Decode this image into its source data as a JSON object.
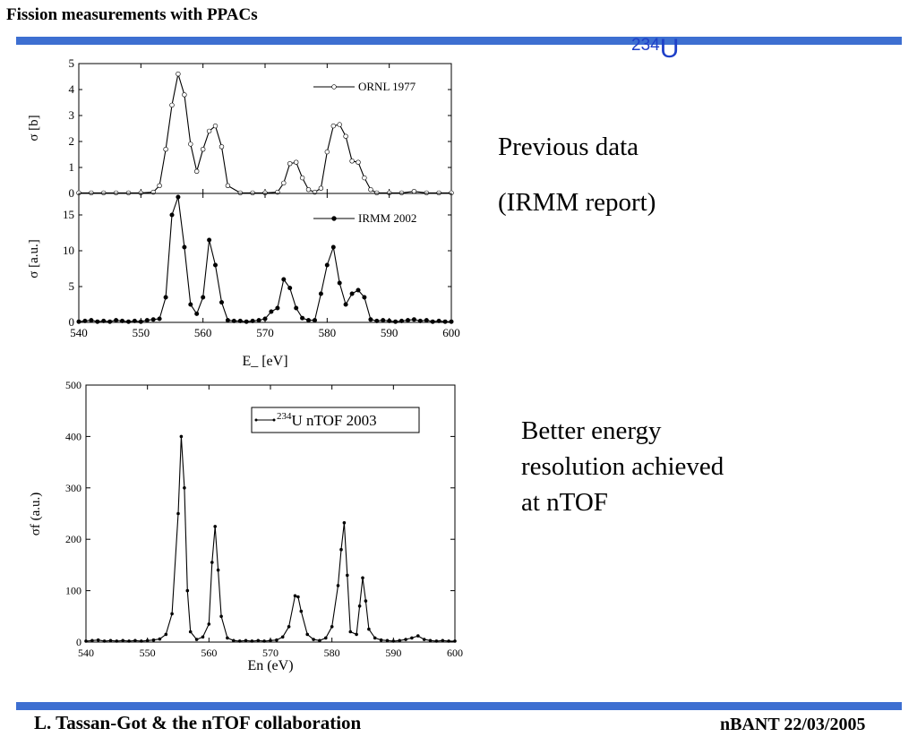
{
  "slide": {
    "title": "Fission measurements with PPACs",
    "isotope_label": "234",
    "isotope_symbol": "U",
    "note1_line1": "Previous data",
    "note1_line2": "(IRMM report)",
    "note2_line1": "Better energy",
    "note2_line2": "resolution achieved",
    "note2_line3": "at nTOF",
    "footer_left": "L. Tassan-Got & the nTOF collaboration",
    "footer_right": "nBANT 22/03/2005",
    "accent_color": "#3d6fd1",
    "isotope_color": "#1f40c8"
  },
  "chart_data": [
    {
      "type": "line",
      "ylabel": "σ [b]",
      "xlim": [
        540,
        600
      ],
      "ylim": [
        0,
        5
      ],
      "yticks": [
        "0",
        "1",
        "2",
        "3",
        "4",
        "5"
      ],
      "xticks": [
        540,
        550,
        560,
        570,
        580,
        590,
        600
      ],
      "legend": "top-right",
      "series": [
        {
          "name": "ORNL 1977",
          "marker": "open-circle",
          "x": [
            540,
            542,
            544,
            546,
            548,
            550,
            552,
            553,
            554,
            555,
            556,
            557,
            558,
            559,
            560,
            561,
            562,
            563,
            564,
            566,
            568,
            570,
            572,
            573,
            574,
            575,
            576,
            577,
            578,
            579,
            580,
            581,
            582,
            583,
            584,
            585,
            586,
            587,
            588,
            590,
            592,
            594,
            596,
            598,
            600
          ],
          "y": [
            0.02,
            0.02,
            0.02,
            0.02,
            0.02,
            0.02,
            0.05,
            0.3,
            1.7,
            3.4,
            4.6,
            3.8,
            1.9,
            0.85,
            1.7,
            2.4,
            2.6,
            1.8,
            0.3,
            0.02,
            0.02,
            0.02,
            0.05,
            0.4,
            1.15,
            1.2,
            0.6,
            0.15,
            0.05,
            0.2,
            1.6,
            2.6,
            2.65,
            2.2,
            1.25,
            1.2,
            0.6,
            0.15,
            0.02,
            0.02,
            0.02,
            0.08,
            0.02,
            0.02,
            0.02
          ]
        }
      ]
    },
    {
      "type": "line",
      "ylabel": "σ [a.u.]",
      "xlabel": "E_ [eV]",
      "xlim": [
        540,
        600
      ],
      "ylim": [
        0,
        18
      ],
      "yticks": [
        "0",
        "5",
        "10",
        "15"
      ],
      "xticks": [
        540,
        550,
        560,
        570,
        580,
        590,
        600
      ],
      "legend": "top-right",
      "series": [
        {
          "name": "IRMM 2002",
          "marker": "filled-circle",
          "x": [
            540,
            541,
            542,
            543,
            544,
            545,
            546,
            547,
            548,
            549,
            550,
            551,
            552,
            553,
            554,
            555,
            556,
            557,
            558,
            559,
            560,
            561,
            562,
            563,
            564,
            565,
            566,
            567,
            568,
            569,
            570,
            571,
            572,
            573,
            574,
            575,
            576,
            577,
            578,
            579,
            580,
            581,
            582,
            583,
            584,
            585,
            586,
            587,
            588,
            589,
            590,
            591,
            592,
            593,
            594,
            595,
            596,
            597,
            598,
            599,
            600
          ],
          "y": [
            0.1,
            0.2,
            0.3,
            0.1,
            0.2,
            0.1,
            0.3,
            0.2,
            0.1,
            0.2,
            0.1,
            0.3,
            0.4,
            0.5,
            3.5,
            15.0,
            17.5,
            10.5,
            2.5,
            1.2,
            3.5,
            11.5,
            8.0,
            2.8,
            0.3,
            0.2,
            0.2,
            0.1,
            0.2,
            0.3,
            0.5,
            1.5,
            2.0,
            6.0,
            4.8,
            2.0,
            0.6,
            0.3,
            0.3,
            4.0,
            8.0,
            10.5,
            5.5,
            2.5,
            4.0,
            4.5,
            3.5,
            0.4,
            0.2,
            0.3,
            0.2,
            0.1,
            0.2,
            0.3,
            0.4,
            0.2,
            0.3,
            0.1,
            0.2,
            0.1,
            0.1
          ]
        }
      ]
    },
    {
      "type": "line",
      "ylabel": "σf (a.u.)",
      "xlabel": "En (eV)",
      "xlim": [
        540,
        600
      ],
      "ylim": [
        0,
        500
      ],
      "yticks": [
        "0",
        "100",
        "200",
        "300",
        "400",
        "500"
      ],
      "xticks": [
        540,
        550,
        560,
        570,
        580,
        590,
        600
      ],
      "legend": "top-right",
      "series": [
        {
          "name": "234U nTOF 2003",
          "marker": "dot",
          "x": [
            540,
            541,
            542,
            543,
            544,
            545,
            546,
            547,
            548,
            549,
            550,
            551,
            552,
            553,
            554,
            555,
            555.5,
            556,
            556.5,
            557,
            558,
            559,
            560,
            560.5,
            561,
            561.5,
            562,
            563,
            564,
            565,
            566,
            567,
            568,
            569,
            570,
            571,
            572,
            573,
            574,
            574.5,
            575,
            576,
            577,
            578,
            579,
            580,
            581,
            581.5,
            582,
            582.5,
            583,
            584,
            584.5,
            585,
            585.5,
            586,
            587,
            588,
            589,
            590,
            591,
            592,
            593,
            594,
            595,
            596,
            597,
            598,
            599,
            600
          ],
          "y": [
            2,
            3,
            4,
            2,
            3,
            2,
            3,
            2,
            3,
            2,
            3,
            4,
            6,
            15,
            55,
            250,
            400,
            300,
            100,
            20,
            5,
            10,
            35,
            155,
            225,
            140,
            50,
            8,
            3,
            2,
            3,
            2,
            3,
            2,
            3,
            4,
            10,
            30,
            90,
            88,
            60,
            15,
            5,
            3,
            8,
            30,
            110,
            180,
            232,
            130,
            20,
            15,
            70,
            125,
            80,
            25,
            8,
            4,
            3,
            2,
            3,
            5,
            8,
            12,
            5,
            3,
            2,
            3,
            2,
            2
          ]
        }
      ]
    }
  ]
}
